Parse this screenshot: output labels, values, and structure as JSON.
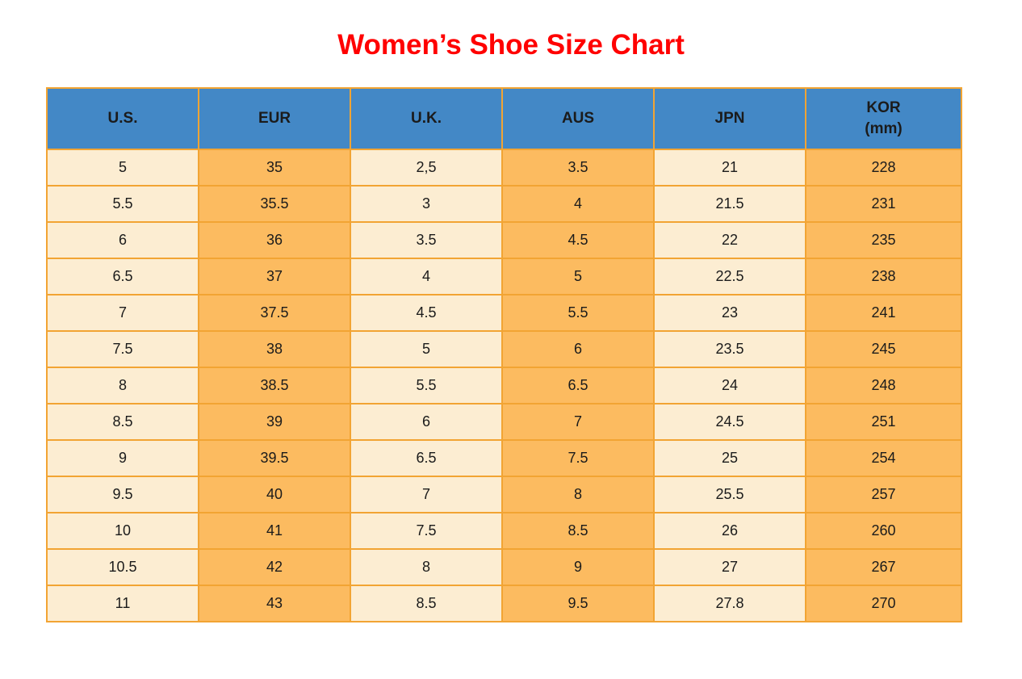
{
  "title": "Women’s Shoe Size Chart",
  "colors": {
    "title_red": "#ff0000",
    "header_blue": "#4388c6",
    "cell_light": "#fcedd2",
    "cell_orange": "#fcbb60",
    "border_orange": "#f2a433"
  },
  "chart_data": {
    "type": "table",
    "title": "Women’s Shoe Size Chart",
    "columns": [
      "U.S.",
      "EUR",
      "U.K.",
      "AUS",
      "JPN",
      "KOR (mm)"
    ],
    "header_labels": [
      [
        "U.S."
      ],
      [
        "EUR"
      ],
      [
        "U.K."
      ],
      [
        "AUS"
      ],
      [
        "JPN"
      ],
      [
        "KOR",
        "(mm)"
      ]
    ],
    "rows": [
      [
        "5",
        "35",
        "2,5",
        "3.5",
        "21",
        "228"
      ],
      [
        "5.5",
        "35.5",
        "3",
        "4",
        "21.5",
        "231"
      ],
      [
        "6",
        "36",
        "3.5",
        "4.5",
        "22",
        "235"
      ],
      [
        "6.5",
        "37",
        "4",
        "5",
        "22.5",
        "238"
      ],
      [
        "7",
        "37.5",
        "4.5",
        "5.5",
        "23",
        "241"
      ],
      [
        "7.5",
        "38",
        "5",
        "6",
        "23.5",
        "245"
      ],
      [
        "8",
        "38.5",
        "5.5",
        "6.5",
        "24",
        "248"
      ],
      [
        "8.5",
        "39",
        "6",
        "7",
        "24.5",
        "251"
      ],
      [
        "9",
        "39.5",
        "6.5",
        "7.5",
        "25",
        "254"
      ],
      [
        "9.5",
        "40",
        "7",
        "8",
        "25.5",
        "257"
      ],
      [
        "10",
        "41",
        "7.5",
        "8.5",
        "26",
        "260"
      ],
      [
        "10.5",
        "42",
        "8",
        "9",
        "27",
        "267"
      ],
      [
        "11",
        "43",
        "8.5",
        "9.5",
        "27.8",
        "270"
      ]
    ]
  }
}
